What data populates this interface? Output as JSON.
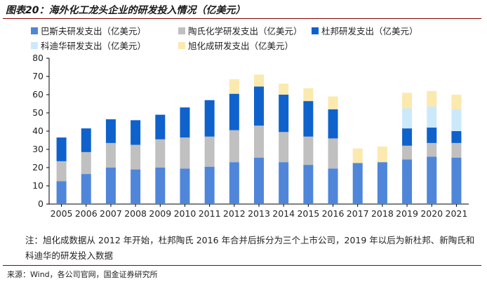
{
  "figure": {
    "title": "图表20：海外化工龙头企业的研发投入情况（亿美元）",
    "note": "注：旭化成数据从 2012 年开始，杜邦陶氏 2016 年合并后拆分为三个上市公司，2019 年以后为新杜邦、新陶氏和科迪华的研发投入数据",
    "source": "来源：Wind，各公司官网，国金证券研究所"
  },
  "chart_data": {
    "type": "bar",
    "stacked": true,
    "title": "海外化工龙头企业的研发投入情况（亿美元）",
    "xlabel": "",
    "ylabel": "",
    "ylim": [
      0,
      80
    ],
    "yticks": [
      "0",
      "10",
      "20",
      "30",
      "40",
      "50",
      "60",
      "70",
      "80"
    ],
    "grid": false,
    "legend_position": "top",
    "categories": [
      "2005",
      "2006",
      "2007",
      "2008",
      "2009",
      "2010",
      "2011",
      "2012",
      "2013",
      "2014",
      "2015",
      "2016",
      "2017",
      "2018",
      "2019",
      "2020",
      "2021"
    ],
    "series": [
      {
        "name": "巴斯夫研发支出（亿美元）",
        "color": "#4f86d9",
        "values": [
          12.5,
          16.5,
          20,
          19,
          20,
          19.5,
          20.5,
          23,
          25.5,
          23,
          21.5,
          19.5,
          22.5,
          23,
          24.5,
          26,
          25.5
        ]
      },
      {
        "name": "陶氏化学研发支出（亿美元）",
        "color": "#c0c0c0",
        "values": [
          11,
          12,
          13.5,
          13.5,
          15.5,
          17,
          16.5,
          17.5,
          17.5,
          16.5,
          15.5,
          16.5,
          0,
          0,
          7.5,
          7.5,
          8
        ]
      },
      {
        "name": "杜邦研发支出（亿美元）",
        "color": "#0f62cc",
        "values": [
          13,
          13,
          13,
          13.5,
          13.5,
          16.5,
          20,
          20,
          21.5,
          20.5,
          19.5,
          16,
          0,
          0,
          9.5,
          8.5,
          6.5
        ]
      },
      {
        "name": "科迪华研发支出（亿美元）",
        "color": "#cce9fb",
        "values": [
          0,
          0,
          0,
          0,
          0,
          0,
          0,
          0,
          0,
          0,
          0,
          0,
          0,
          0,
          11,
          11.5,
          12
        ]
      },
      {
        "name": "旭化成研发支出（亿美元）",
        "color": "#fbe9ae",
        "values": [
          0,
          0,
          0,
          0,
          0,
          0,
          0,
          8,
          6.5,
          6,
          7,
          7,
          8,
          8.5,
          8.5,
          8.5,
          8
        ]
      }
    ]
  }
}
